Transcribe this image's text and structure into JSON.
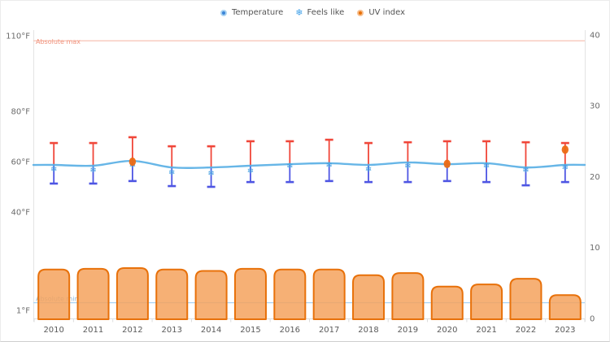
{
  "legend": {
    "items": [
      {
        "label": "Temperature",
        "marker": "two-tone-dot",
        "outer_color": "#A9D3F2",
        "inner_color": "#3E86D8"
      },
      {
        "label": "Feels like",
        "marker": "snowflake",
        "color": "#3FA0E8"
      },
      {
        "label": "UV index",
        "marker": "two-tone-dot",
        "outer_color": "#F7BE8D",
        "inner_color": "#E8710A"
      }
    ]
  },
  "chart_data": {
    "type": "combo",
    "title": "",
    "categories": [
      "2010",
      "2011",
      "2012",
      "2013",
      "2014",
      "2015",
      "2016",
      "2017",
      "2018",
      "2019",
      "2020",
      "2021",
      "2022",
      "2023"
    ],
    "series": [
      {
        "name": "Temperature",
        "type": "line",
        "axis": "left",
        "unit": "°F",
        "color": "#56AEE4",
        "values": [
          58.7,
          58.4,
          60.3,
          57.7,
          57.7,
          58.4,
          59.0,
          59.4,
          58.7,
          59.7,
          59.0,
          59.4,
          57.7,
          58.7
        ]
      },
      {
        "name": "Feels like",
        "type": "points",
        "marker": "snowflake",
        "axis": "left",
        "unit": "°F",
        "color": "#3D9FE0",
        "values": [
          57.1,
          56.8,
          58.7,
          55.8,
          55.5,
          56.5,
          58.4,
          58.7,
          57.1,
          58.4,
          58.4,
          58.4,
          56.8,
          57.7
        ]
      },
      {
        "name": "Range high",
        "type": "whisker_high",
        "axis": "left",
        "unit": "°F",
        "color": "#F0473A",
        "values": [
          67.4,
          67.4,
          69.7,
          66.1,
          66.1,
          68.1,
          68.1,
          68.7,
          67.4,
          67.7,
          68.1,
          68.1,
          67.7,
          67.4
        ]
      },
      {
        "name": "Range low",
        "type": "whisker_low",
        "axis": "left",
        "unit": "°F",
        "color": "#4E55E3",
        "values": [
          51.3,
          51.3,
          52.3,
          50.3,
          50.0,
          51.9,
          51.9,
          52.3,
          51.9,
          51.9,
          52.3,
          51.9,
          50.6,
          51.9
        ]
      },
      {
        "name": "UV index",
        "type": "bar",
        "axis": "right",
        "stroke": "#E8710A",
        "fill": "#F5A25D",
        "fill_opacity": 0.85,
        "values": [
          6.9,
          7.0,
          7.1,
          6.9,
          6.7,
          7.0,
          6.9,
          6.9,
          6.1,
          6.4,
          4.5,
          4.8,
          5.6,
          3.3
        ]
      },
      {
        "name": "UV index highlights",
        "type": "points",
        "marker": "dot",
        "axis": "right",
        "color": "#EC6A13",
        "points": [
          {
            "category": "2012",
            "value": 22.1
          },
          {
            "category": "2020",
            "value": 21.8
          },
          {
            "category": "2023",
            "value": 23.8
          }
        ]
      }
    ],
    "reference_lines": [
      {
        "label": "Absolute max",
        "axis": "left",
        "value": 108,
        "line_color": "#F7BCAC",
        "label_color": "#F0937E"
      },
      {
        "label": "Absolute min",
        "axis": "left",
        "value": 4,
        "line_color": "#AAD4F5",
        "label_color": "#8FB8D8"
      }
    ],
    "axes": {
      "left": {
        "tick_labels": [
          "110°F",
          "80°F",
          "60°F",
          "40°F",
          "1°F"
        ],
        "tick_values": [
          110,
          80,
          60,
          40,
          1
        ],
        "min": 1,
        "max": 110
      },
      "right": {
        "tick_labels": [
          "40",
          "30",
          "20",
          "10",
          "0"
        ],
        "tick_values": [
          40,
          30,
          20,
          10,
          0
        ],
        "min": 0,
        "max": 40
      },
      "x": {
        "tick_labels": [
          "2010",
          "2011",
          "2012",
          "2013",
          "2014",
          "2015",
          "2016",
          "2017",
          "2018",
          "2019",
          "2020",
          "2021",
          "2022",
          "2023"
        ]
      }
    },
    "grid": false,
    "legend_position": "top-center",
    "axis_text_color": "#6b6b6b",
    "axis_line_color": "#e4e4e4"
  }
}
